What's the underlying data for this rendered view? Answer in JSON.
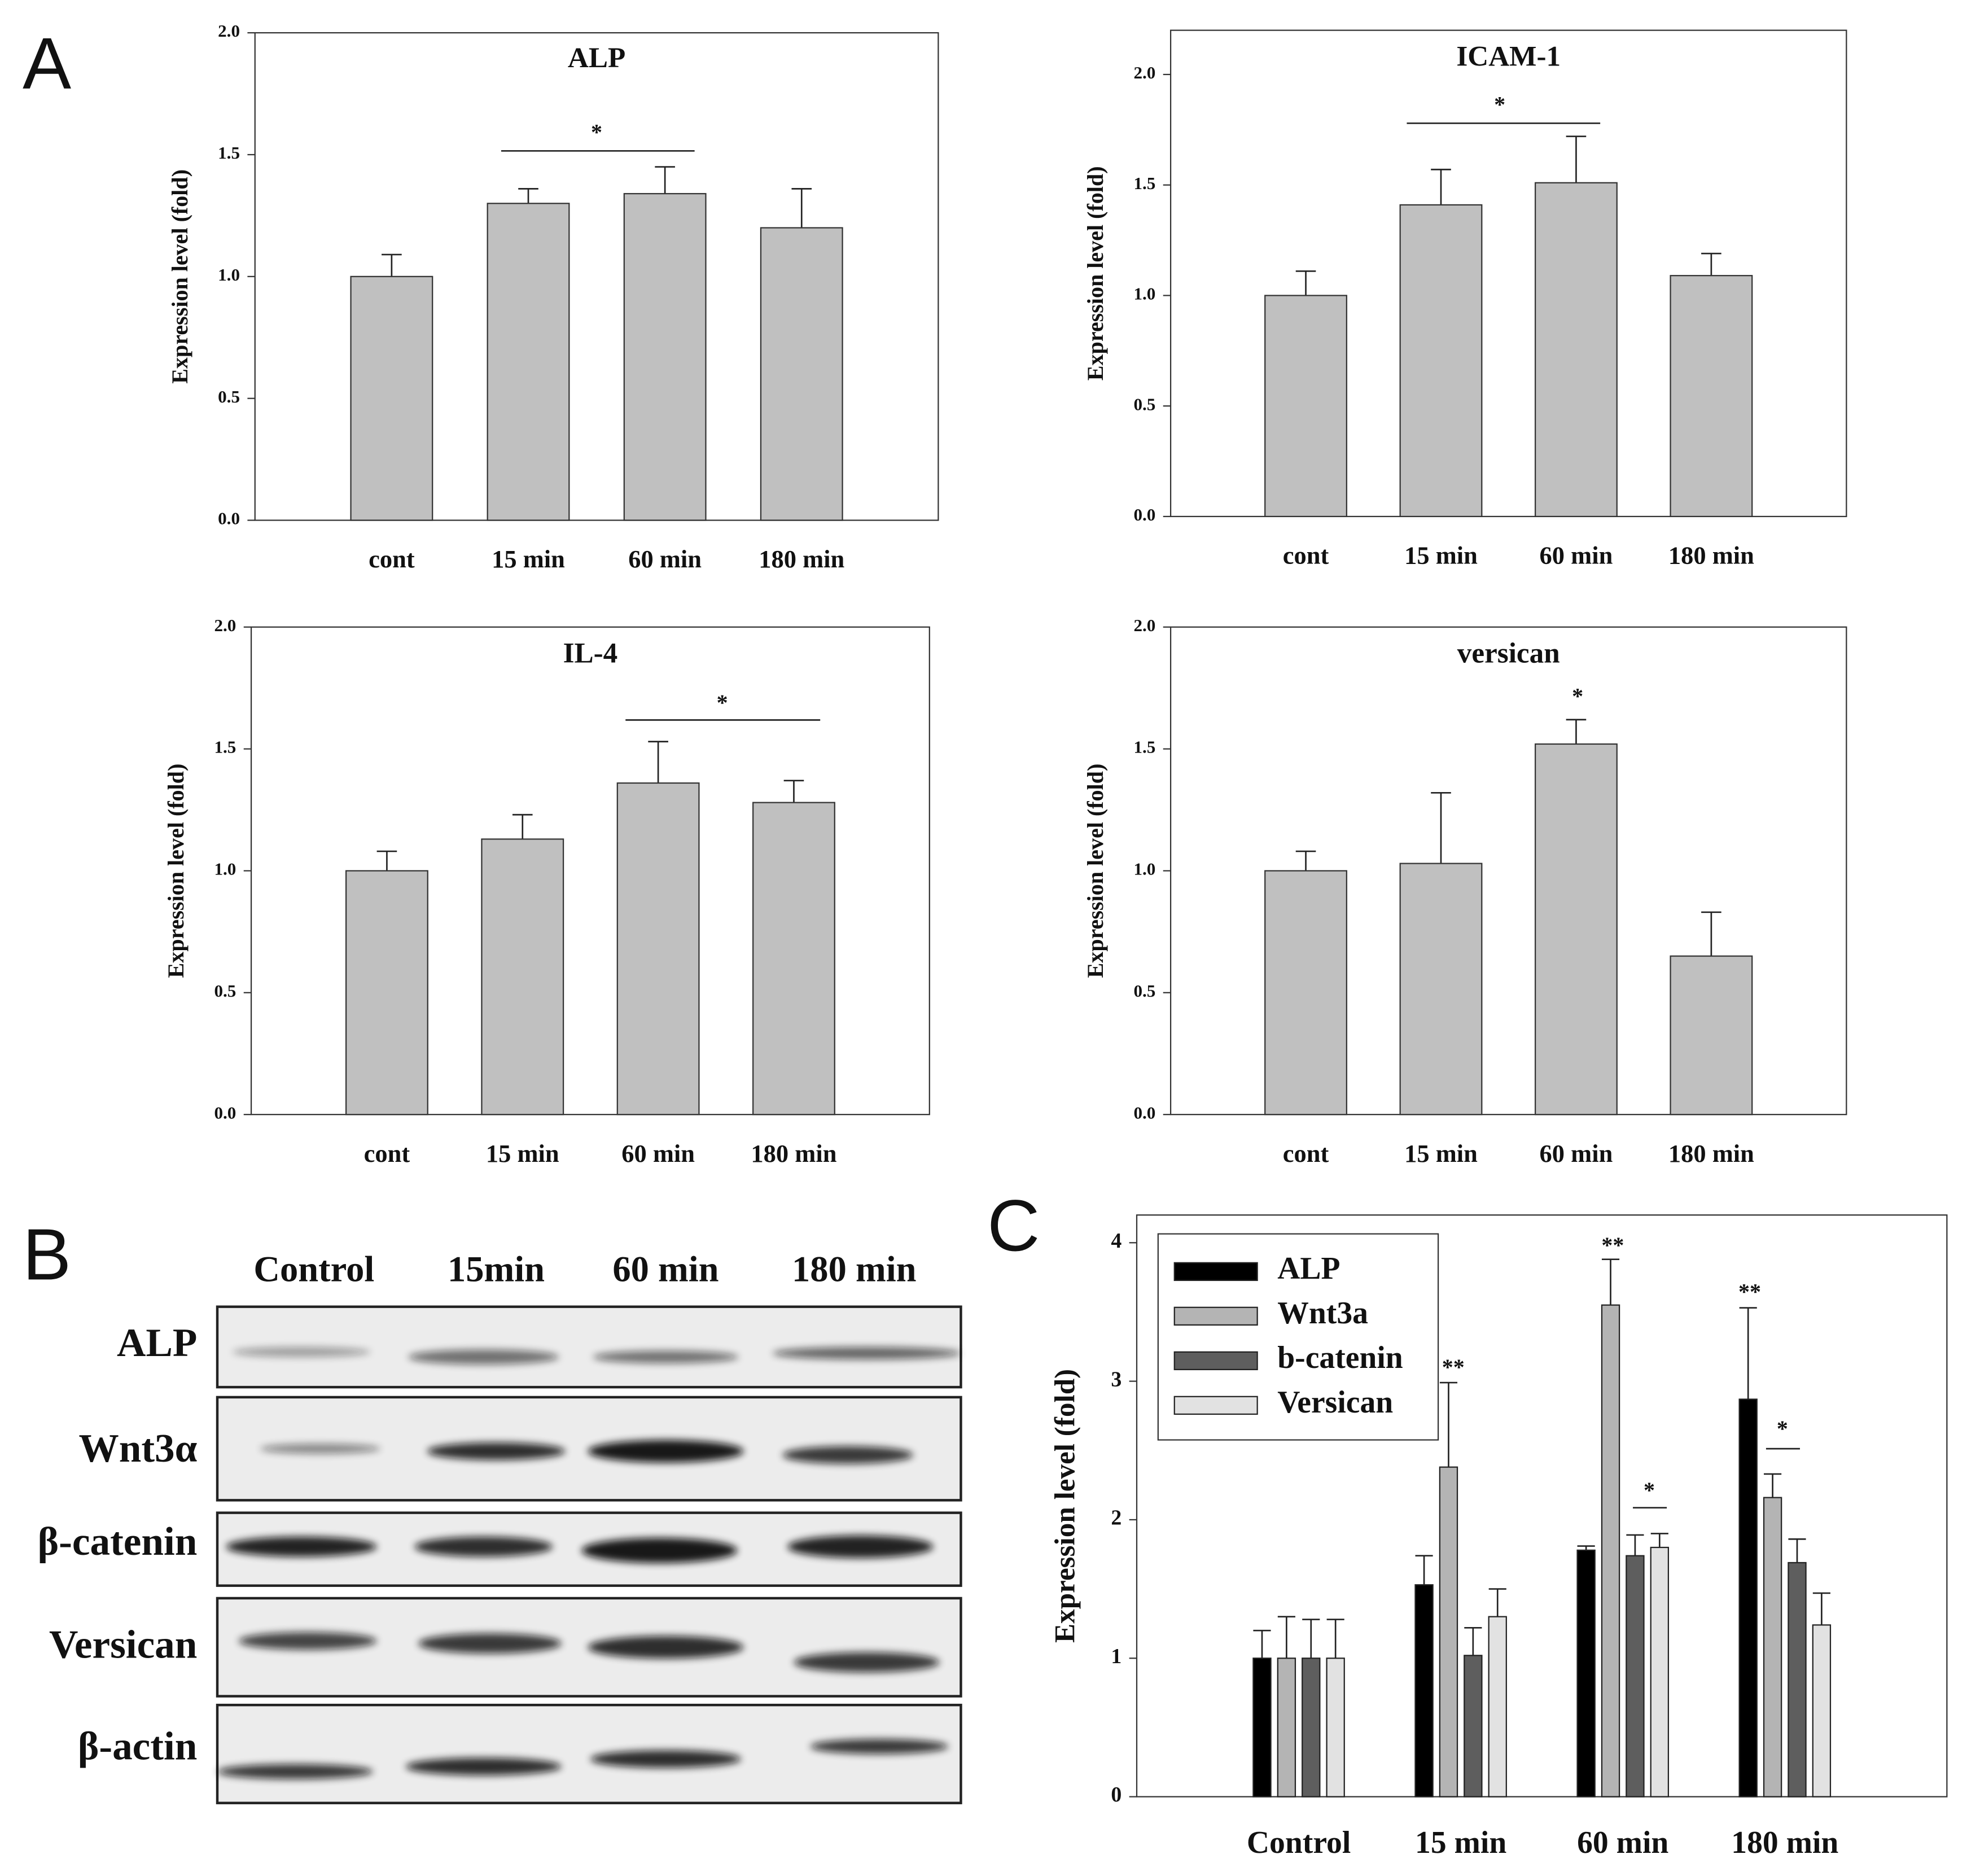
{
  "panel_labels": [
    "A",
    "B",
    "C"
  ],
  "chart_data": [
    {
      "type": "bar",
      "title": "ALP",
      "ylabel": "Expression level (fold)",
      "categories": [
        "cont",
        "15 min",
        "60 min",
        "180 min"
      ],
      "values": [
        1.0,
        1.3,
        1.34,
        1.2
      ],
      "errors": [
        0.09,
        0.06,
        0.11,
        0.16
      ],
      "color": "#c0c0c0",
      "ylim": [
        0,
        2
      ],
      "yticks": [
        {
          "value": 0,
          "label": "0.0"
        },
        {
          "value": 0.5,
          "label": "0.5"
        },
        {
          "value": 1,
          "label": "1.0"
        },
        {
          "value": 1.5,
          "label": "1.5"
        },
        {
          "value": 2,
          "label": "2.0"
        }
      ],
      "annotations": [
        "*"
      ]
    },
    {
      "type": "bar",
      "title": "ICAM-1",
      "ylabel": "Expression level (fold)",
      "categories": [
        "cont",
        "15 min",
        "60 min",
        "180 min"
      ],
      "values": [
        1.0,
        1.41,
        1.51,
        1.09
      ],
      "errors": [
        0.11,
        0.16,
        0.21,
        0.1
      ],
      "color": "#c0c0c0",
      "ylim": [
        0,
        2.2
      ],
      "yticks": [
        {
          "value": 0,
          "label": "0.0"
        },
        {
          "value": 0.5,
          "label": "0.5"
        },
        {
          "value": 1,
          "label": "1.0"
        },
        {
          "value": 1.5,
          "label": "1.5"
        },
        {
          "value": 2,
          "label": "2.0"
        }
      ],
      "annotations": [
        "*"
      ]
    },
    {
      "type": "bar",
      "title": "IL-4",
      "ylabel": "Expression level (fold)",
      "categories": [
        "cont",
        "15 min",
        "60 min",
        "180 min"
      ],
      "values": [
        1.0,
        1.13,
        1.36,
        1.28
      ],
      "errors": [
        0.08,
        0.1,
        0.17,
        0.09
      ],
      "color": "#c0c0c0",
      "ylim": [
        0,
        2
      ],
      "yticks": [
        {
          "value": 0,
          "label": "0.0"
        },
        {
          "value": 0.5,
          "label": "0.5"
        },
        {
          "value": 1,
          "label": "1.0"
        },
        {
          "value": 1.5,
          "label": "1.5"
        },
        {
          "value": 2,
          "label": "2.0"
        }
      ],
      "annotations": [
        "*"
      ]
    },
    {
      "type": "bar",
      "title": "versican",
      "ylabel": "Expression level (fold)",
      "categories": [
        "cont",
        "15 min",
        "60 min",
        "180 min"
      ],
      "values": [
        1.0,
        1.03,
        1.52,
        0.65
      ],
      "errors": [
        0.08,
        0.29,
        0.1,
        0.18
      ],
      "color": "#c0c0c0",
      "ylim": [
        0,
        2
      ],
      "yticks": [
        {
          "value": 0,
          "label": "0.0"
        },
        {
          "value": 0.5,
          "label": "0.5"
        },
        {
          "value": 1,
          "label": "1.0"
        },
        {
          "value": 1.5,
          "label": "1.5"
        },
        {
          "value": 2,
          "label": "2.0"
        }
      ],
      "annotations": [
        "*"
      ]
    },
    {
      "type": "grouped_bar",
      "ylabel": "Expression level (fold)",
      "categories": [
        "Control",
        "15 min",
        "60 min",
        "180 min"
      ],
      "series": [
        {
          "name": "ALP",
          "color": "#000000",
          "values": [
            1.0,
            1.53,
            1.78,
            2.87
          ],
          "errors": [
            0.2,
            0.21,
            0.03,
            0.66
          ]
        },
        {
          "name": "Wnt3a",
          "color": "#b4b4b4",
          "values": [
            1.0,
            2.38,
            3.55,
            2.16
          ],
          "errors": [
            0.3,
            0.61,
            0.33,
            0.17
          ]
        },
        {
          "name": "b-catenin",
          "color": "#5e5e5e",
          "values": [
            1.0,
            1.02,
            1.74,
            1.69
          ],
          "errors": [
            0.28,
            0.2,
            0.15,
            0.17
          ]
        },
        {
          "name": "Versican",
          "color": "#e2e2e2",
          "values": [
            1.0,
            1.3,
            1.8,
            1.24
          ],
          "errors": [
            0.28,
            0.2,
            0.1,
            0.23
          ]
        }
      ],
      "ylim": [
        0,
        4.2
      ],
      "yticks": [
        0,
        1,
        2,
        3,
        4
      ],
      "legend": "upper left",
      "annotations": [
        "**",
        "**",
        "**",
        "*",
        "*"
      ]
    }
  ],
  "blot": {
    "columns": [
      "Control",
      "15min",
      "60 min",
      "180 min"
    ],
    "rows": [
      "ALP",
      "Wnt3α",
      "β-catenin",
      "Versican",
      "β-actin"
    ]
  }
}
